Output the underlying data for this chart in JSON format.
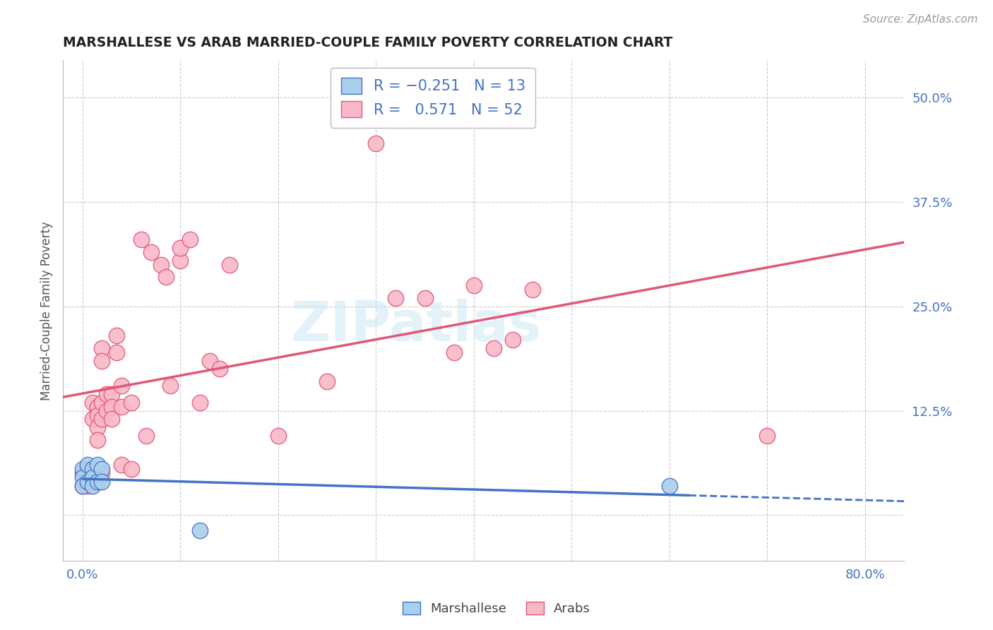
{
  "title": "MARSHALLESE VS ARAB MARRIED-COUPLE FAMILY POVERTY CORRELATION CHART",
  "source": "Source: ZipAtlas.com",
  "xlabel_ticks": [
    0.0,
    0.1,
    0.2,
    0.3,
    0.4,
    0.5,
    0.6,
    0.7,
    0.8
  ],
  "xlabel_labels": [
    "0.0%",
    "",
    "",
    "",
    "",
    "",
    "",
    "",
    "80.0%"
  ],
  "ylabel_ticks": [
    0.0,
    0.125,
    0.25,
    0.375,
    0.5
  ],
  "ylabel_labels": [
    "",
    "12.5%",
    "25.0%",
    "37.5%",
    "50.0%"
  ],
  "ylabel_label": "Married-Couple Family Poverty",
  "xlim": [
    -0.02,
    0.84
  ],
  "ylim": [
    -0.055,
    0.545
  ],
  "watermark": "ZIPatlas",
  "legend_blue_label": "Marshallese",
  "legend_pink_label": "Arabs",
  "blue_color": "#aacfed",
  "pink_color": "#f9b8c8",
  "blue_line_color": "#4472c4",
  "pink_line_color": "#e05878",
  "grid_color": "#cccccc",
  "background_color": "#ffffff",
  "marshallese_x": [
    0.0,
    0.0,
    0.0,
    0.005,
    0.005,
    0.01,
    0.01,
    0.01,
    0.015,
    0.015,
    0.02,
    0.02,
    0.12,
    0.6
  ],
  "marshallese_y": [
    0.055,
    0.045,
    0.035,
    0.06,
    0.04,
    0.055,
    0.045,
    0.035,
    0.06,
    0.04,
    0.055,
    0.04,
    -0.018,
    0.035
  ],
  "arabs_x": [
    0.0,
    0.0,
    0.005,
    0.005,
    0.005,
    0.01,
    0.01,
    0.015,
    0.015,
    0.015,
    0.015,
    0.02,
    0.02,
    0.02,
    0.02,
    0.02,
    0.025,
    0.025,
    0.03,
    0.03,
    0.03,
    0.035,
    0.035,
    0.04,
    0.04,
    0.04,
    0.05,
    0.05,
    0.06,
    0.065,
    0.07,
    0.08,
    0.085,
    0.09,
    0.1,
    0.1,
    0.11,
    0.12,
    0.13,
    0.14,
    0.15,
    0.2,
    0.25,
    0.3,
    0.32,
    0.35,
    0.38,
    0.4,
    0.42,
    0.44,
    0.46,
    0.7
  ],
  "arabs_y": [
    0.05,
    0.035,
    0.055,
    0.045,
    0.035,
    0.135,
    0.115,
    0.13,
    0.12,
    0.105,
    0.09,
    0.2,
    0.185,
    0.135,
    0.115,
    0.05,
    0.145,
    0.125,
    0.145,
    0.13,
    0.115,
    0.215,
    0.195,
    0.155,
    0.13,
    0.06,
    0.135,
    0.055,
    0.33,
    0.095,
    0.315,
    0.3,
    0.285,
    0.155,
    0.305,
    0.32,
    0.33,
    0.135,
    0.185,
    0.175,
    0.3,
    0.095,
    0.16,
    0.445,
    0.26,
    0.26,
    0.195,
    0.275,
    0.2,
    0.21,
    0.27,
    0.095
  ]
}
